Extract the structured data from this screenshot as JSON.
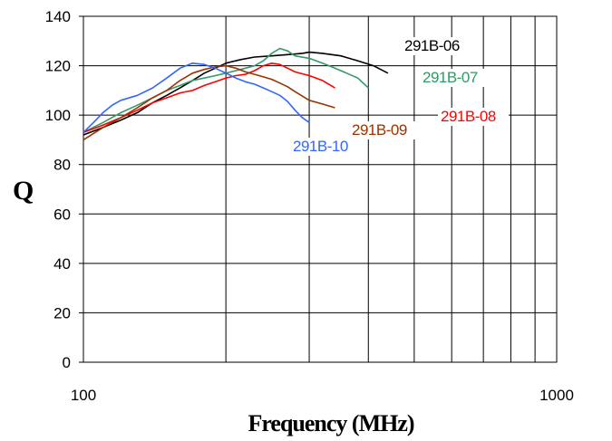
{
  "chart_data": {
    "type": "line",
    "xscale": "log",
    "xlim": [
      100,
      1000
    ],
    "ylim": [
      0,
      140
    ],
    "xlabel": "Frequency (MHz)",
    "ylabel": "Q",
    "x_ticks": [
      "100",
      "1000"
    ],
    "y_ticks": [
      "0",
      "20",
      "40",
      "60",
      "80",
      "100",
      "120",
      "140"
    ],
    "grid": true,
    "series": [
      {
        "name": "291B-06",
        "color": "#000000",
        "x": [
          100,
          110,
          120,
          130,
          140,
          150,
          160,
          170,
          180,
          190,
          200,
          215,
          230,
          250,
          270,
          290,
          300,
          320,
          350,
          380,
          410,
          440
        ],
        "y": [
          92,
          95,
          98,
          101,
          105,
          108,
          111,
          114,
          117,
          119,
          121,
          122.5,
          123.5,
          124,
          124.5,
          125,
          125.5,
          125,
          124,
          122,
          120,
          117
        ]
      },
      {
        "name": "291B-07",
        "color": "#339966",
        "x": [
          100,
          110,
          120,
          130,
          140,
          150,
          160,
          170,
          180,
          190,
          200,
          210,
          220,
          230,
          240,
          250,
          260,
          270,
          280,
          300,
          320,
          340,
          360,
          380,
          400
        ],
        "y": [
          93,
          97,
          101,
          104,
          107,
          110,
          112,
          114,
          115,
          116,
          117,
          118,
          119,
          120,
          122,
          125,
          127,
          126,
          124,
          123,
          121,
          119,
          117,
          115,
          111
        ]
      },
      {
        "name": "291B-08",
        "color": "#ff0000",
        "x": [
          100,
          110,
          120,
          130,
          140,
          150,
          160,
          170,
          180,
          190,
          200,
          210,
          220,
          230,
          240,
          250,
          260,
          270,
          280,
          300,
          320,
          340
        ],
        "y": [
          93,
          96,
          99,
          102,
          105,
          107,
          109,
          110,
          112,
          113.5,
          115,
          116,
          116.5,
          118,
          120,
          121,
          120.5,
          119,
          117.5,
          116,
          114,
          111
        ]
      },
      {
        "name": "291B-09",
        "color": "#993300",
        "x": [
          100,
          110,
          120,
          130,
          140,
          150,
          160,
          170,
          180,
          190,
          200,
          210,
          220,
          230,
          240,
          250,
          260,
          270,
          280,
          300,
          320,
          340
        ],
        "y": [
          90,
          95,
          99,
          103,
          107,
          110,
          114,
          117,
          118.5,
          119.5,
          120,
          119,
          117.5,
          116.5,
          115.5,
          114.5,
          113,
          111.5,
          109.5,
          106,
          104.5,
          103
        ]
      },
      {
        "name": "291B-10",
        "color": "#3366ff",
        "x": [
          100,
          105,
          110,
          115,
          120,
          130,
          140,
          150,
          160,
          170,
          180,
          190,
          200,
          210,
          220,
          230,
          240,
          250,
          260,
          270,
          280,
          290,
          300
        ],
        "y": [
          93,
          97,
          101,
          104,
          106,
          108,
          111,
          115,
          119,
          121,
          120.5,
          119,
          117,
          115,
          113.5,
          112.5,
          111,
          109.5,
          108,
          105.5,
          102,
          99,
          97
        ]
      }
    ]
  }
}
